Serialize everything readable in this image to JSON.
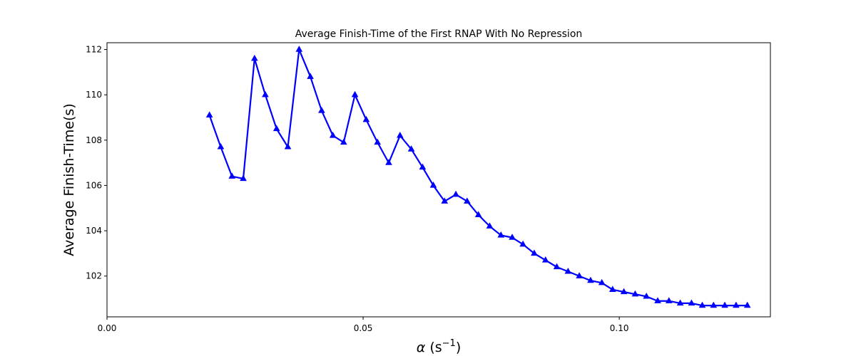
{
  "chart_data": {
    "type": "line",
    "title": "Average Finish-Time of the First RNAP With No Repression",
    "xlabel": {
      "symbol": "α",
      "unit_prefix": " (s",
      "unit_superscript": "−1",
      "unit_suffix": ")"
    },
    "ylabel": "Average Finish-Time(s)",
    "xlim": [
      0.0,
      0.1295
    ],
    "ylim": [
      100.2,
      112.3
    ],
    "xticks": [
      0.0,
      0.05,
      0.1
    ],
    "xtick_labels": [
      "0.00",
      "0.05",
      "0.10"
    ],
    "yticks": [
      102,
      104,
      106,
      108,
      110,
      112
    ],
    "ytick_labels": [
      "102",
      "104",
      "106",
      "108",
      "110",
      "112"
    ],
    "grid": false,
    "series": [
      {
        "color": "#0000ff",
        "marker": "triangle-up",
        "x": [
          0.02,
          0.0222,
          0.0244,
          0.0266,
          0.0288,
          0.0309,
          0.0331,
          0.0353,
          0.0375,
          0.0397,
          0.0419,
          0.0441,
          0.0462,
          0.0484,
          0.0506,
          0.0528,
          0.055,
          0.0572,
          0.0594,
          0.0616,
          0.0637,
          0.0659,
          0.0681,
          0.0703,
          0.0725,
          0.0747,
          0.0769,
          0.0791,
          0.0812,
          0.0834,
          0.0856,
          0.0878,
          0.09,
          0.0922,
          0.0944,
          0.0966,
          0.0987,
          0.1009,
          0.1031,
          0.1053,
          0.1075,
          0.1097,
          0.1119,
          0.1141,
          0.1162,
          0.1184,
          0.1206,
          0.1228,
          0.125
        ],
        "values": [
          109.1,
          107.7,
          106.4,
          106.3,
          111.6,
          110.0,
          108.5,
          107.7,
          112.0,
          110.8,
          109.3,
          108.2,
          107.9,
          110.0,
          108.9,
          107.9,
          107.0,
          108.2,
          107.6,
          106.8,
          106.0,
          105.3,
          105.6,
          105.3,
          104.7,
          104.2,
          103.8,
          103.7,
          103.4,
          103.0,
          102.7,
          102.4,
          102.2,
          102.0,
          101.8,
          101.7,
          101.4,
          101.3,
          101.2,
          101.1,
          100.9,
          100.9,
          100.8,
          100.8,
          100.7,
          100.7,
          100.7,
          100.7,
          100.7
        ]
      }
    ]
  }
}
